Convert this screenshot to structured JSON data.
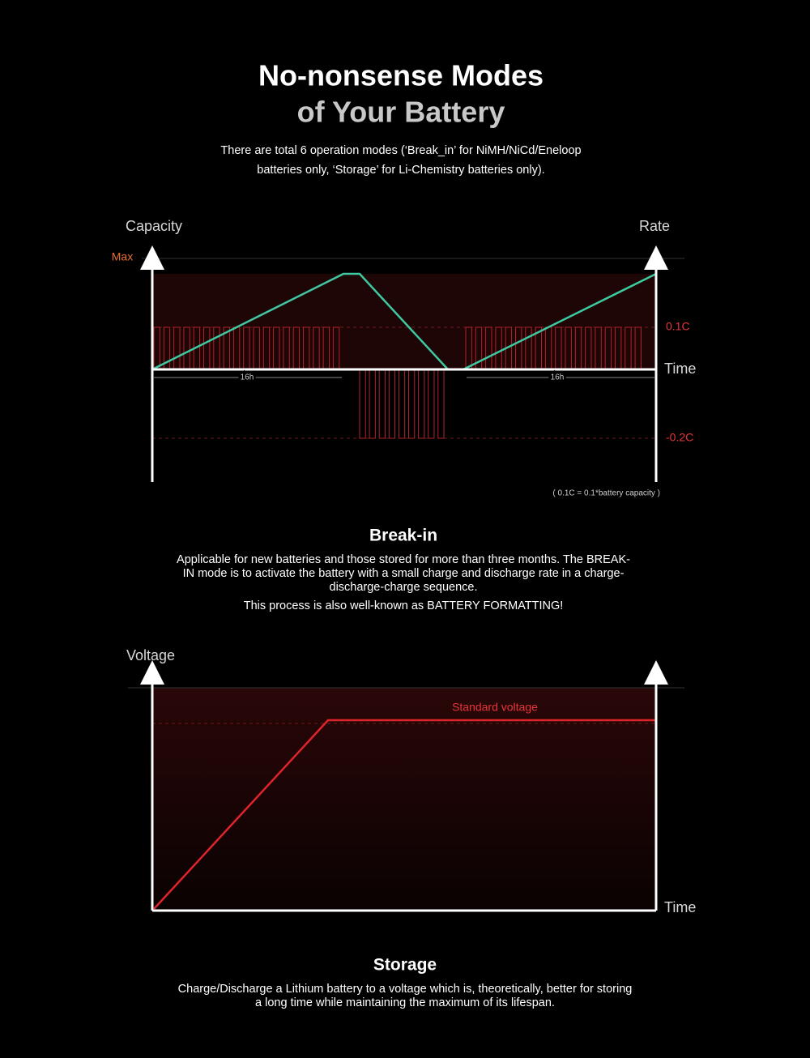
{
  "header": {
    "title_lines": [
      "No-nonsense Modes",
      "of Your Battery"
    ],
    "subtitle_lines": [
      "There are total 6 operation modes (‘Break_in’ for NiMH/NiCd/Eneloop",
      "batteries only, ‘Storage’ for Li-Chemistry batteries only)."
    ]
  },
  "breakin_diagram": {
    "left_axis": "Capacity",
    "right_axis": "Rate",
    "max_label": "Max",
    "rate_high": "0.1C",
    "rate_low": "-0.2C",
    "time_label": "Time",
    "duration_labels": [
      "16h",
      "16h"
    ],
    "note": "( 0.1C = 0.1*battery capacity )"
  },
  "breakin": {
    "title": "Break-in",
    "lines": [
      "Applicable for new batteries and those stored for more than three months. The BREAK-",
      "IN mode is to activate the battery with a small charge and discharge rate in a charge-",
      "discharge-charge sequence."
    ],
    "note": "This process is also well-known as BATTERY FORMATTING!"
  },
  "storage_diagram": {
    "left_axis": "Voltage",
    "line_label": "Standard voltage",
    "time_label": "Time"
  },
  "storage": {
    "title": "Storage",
    "lines": [
      "Charge/Discharge a Lithium battery to a voltage which is, theoretically, better for storing",
      "a long time while maintaining the maximum of its lifespan."
    ]
  }
}
